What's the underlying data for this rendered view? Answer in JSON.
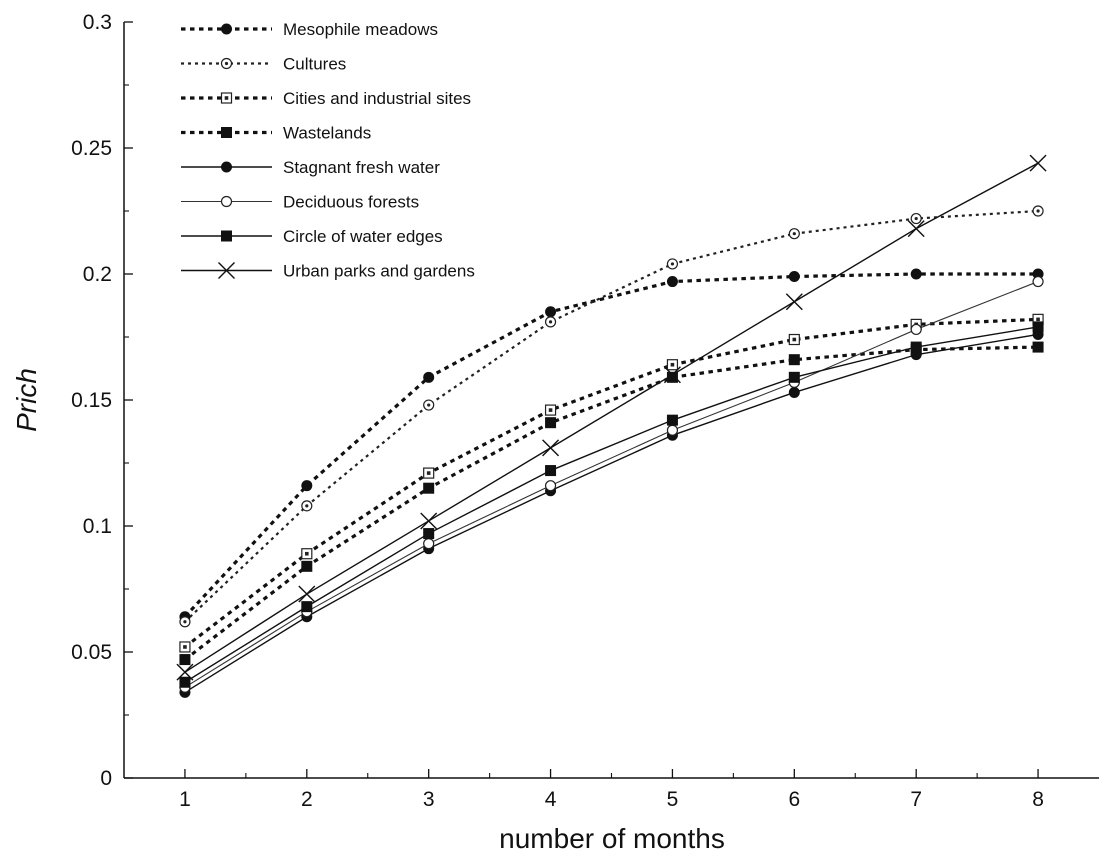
{
  "chart_data": {
    "type": "line",
    "title": "",
    "xlabel": "number of months",
    "ylabel": "Prich",
    "x": [
      1,
      2,
      3,
      4,
      5,
      6,
      7,
      8
    ],
    "xlim": [
      0.5,
      8.5
    ],
    "ylim": [
      0,
      0.3
    ],
    "y_ticks": [
      "0",
      "0.05",
      "0.1",
      "0.15",
      "0.2",
      "0.25",
      "0.3"
    ],
    "x_ticks": [
      "1",
      "2",
      "3",
      "4",
      "5",
      "6",
      "7",
      "8"
    ],
    "grid": false,
    "legend_position": "top-left",
    "series": [
      {
        "name": "Mesophile meadows",
        "marker": "filled-circle",
        "line": "dotted-bold",
        "values": [
          0.064,
          0.116,
          0.159,
          0.185,
          0.197,
          0.199,
          0.2,
          0.2
        ]
      },
      {
        "name": "Cultures",
        "marker": "dotted-circle",
        "line": "dotted",
        "values": [
          0.062,
          0.108,
          0.148,
          0.181,
          0.204,
          0.216,
          0.222,
          0.225
        ]
      },
      {
        "name": "Cities and industrial sites",
        "marker": "dotted-square",
        "line": "dotted-bold",
        "values": [
          0.052,
          0.089,
          0.121,
          0.146,
          0.164,
          0.174,
          0.18,
          0.182
        ]
      },
      {
        "name": "Wastelands",
        "marker": "filled-square",
        "line": "dotted-bold",
        "values": [
          0.047,
          0.084,
          0.115,
          0.141,
          0.159,
          0.166,
          0.17,
          0.171
        ]
      },
      {
        "name": "Stagnant fresh water",
        "marker": "filled-circle",
        "line": "solid",
        "values": [
          0.034,
          0.064,
          0.091,
          0.114,
          0.136,
          0.153,
          0.168,
          0.176
        ]
      },
      {
        "name": "Deciduous forests",
        "marker": "open-circle",
        "line": "solid-thin",
        "values": [
          0.036,
          0.066,
          0.093,
          0.116,
          0.138,
          0.157,
          0.178,
          0.197
        ]
      },
      {
        "name": "Circle of water edges",
        "marker": "filled-square",
        "line": "solid",
        "values": [
          0.038,
          0.068,
          0.097,
          0.122,
          0.142,
          0.159,
          0.171,
          0.179
        ]
      },
      {
        "name": "Urban parks and gardens",
        "marker": "cross",
        "line": "solid",
        "values": [
          0.042,
          0.073,
          0.102,
          0.131,
          0.16,
          0.189,
          0.218,
          0.244
        ]
      }
    ]
  }
}
